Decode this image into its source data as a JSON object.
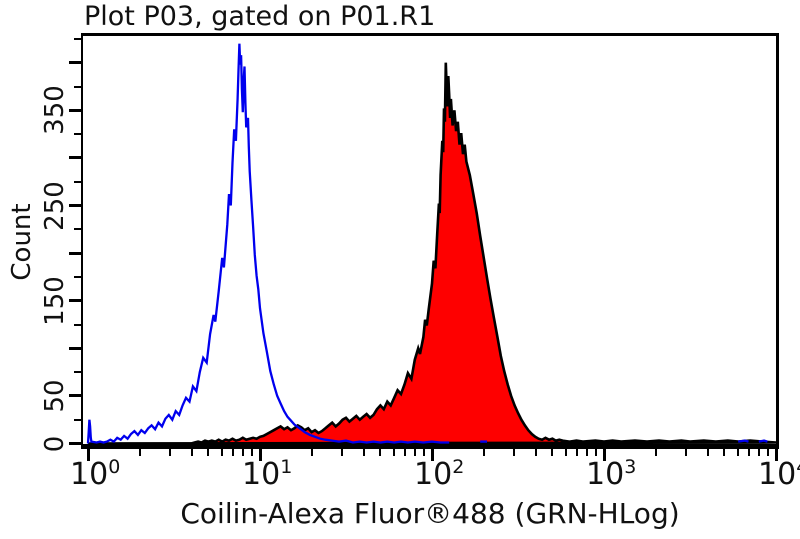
{
  "header": {
    "title": "Plot P03, gated on P01.R1"
  },
  "axes": {
    "x": {
      "title": "Coilin-Alexa Fluor®488 (GRN-HLog)",
      "scale": "log10",
      "base_label": "10",
      "decade_exponents": [
        0,
        1,
        2,
        3,
        4
      ],
      "minor_log_offsets": [
        0.301,
        0.477,
        0.602,
        0.699,
        0.778,
        0.845,
        0.903,
        0.954
      ]
    },
    "y": {
      "title": "Count",
      "min": 0,
      "max": 425,
      "minor_step": 25,
      "major_step": 50,
      "labeled_ticks": [
        0,
        50,
        150,
        250,
        350
      ]
    }
  },
  "colors": {
    "sample_fill": "#fe0000",
    "sample_outline": "#000000",
    "control_stroke": "#0000ee",
    "axis": "#000000",
    "background": "#ffffff"
  },
  "chart_data": {
    "type": "area",
    "title": "Plot P03, gated on P01.R1",
    "xlabel": "Coilin-Alexa Fluor®488 (GRN-HLog)",
    "ylabel": "Count",
    "x_scale": "log10",
    "x_range": [
      1,
      10000
    ],
    "ylim": [
      0,
      425
    ],
    "grid": false,
    "legend": "none",
    "series": [
      {
        "name": "stained-sample-filled-red",
        "fill": "#fe0000",
        "stroke": "#000000",
        "stroke_width": 2.6,
        "points_log10x_count": [
          [
            0,
            0
          ],
          [
            0.6,
            0
          ],
          [
            0.62,
            1
          ],
          [
            0.64,
            2
          ],
          [
            0.66,
            1
          ],
          [
            0.68,
            3
          ],
          [
            0.7,
            2
          ],
          [
            0.72,
            3
          ],
          [
            0.74,
            2
          ],
          [
            0.76,
            4
          ],
          [
            0.78,
            2
          ],
          [
            0.8,
            4
          ],
          [
            0.82,
            3
          ],
          [
            0.84,
            5
          ],
          [
            0.86,
            3
          ],
          [
            0.88,
            4
          ],
          [
            0.9,
            6
          ],
          [
            0.92,
            4
          ],
          [
            0.94,
            5
          ],
          [
            0.96,
            6
          ],
          [
            0.98,
            5
          ],
          [
            1.0,
            7
          ],
          [
            1.02,
            8
          ],
          [
            1.04,
            10
          ],
          [
            1.06,
            12
          ],
          [
            1.08,
            14
          ],
          [
            1.1,
            16
          ],
          [
            1.12,
            18
          ],
          [
            1.14,
            15
          ],
          [
            1.16,
            17
          ],
          [
            1.18,
            14
          ],
          [
            1.2,
            16
          ],
          [
            1.22,
            19
          ],
          [
            1.24,
            17
          ],
          [
            1.26,
            14
          ],
          [
            1.28,
            16
          ],
          [
            1.3,
            12
          ],
          [
            1.32,
            14
          ],
          [
            1.34,
            11
          ],
          [
            1.36,
            13
          ],
          [
            1.38,
            16
          ],
          [
            1.4,
            19
          ],
          [
            1.42,
            22
          ],
          [
            1.44,
            18
          ],
          [
            1.46,
            21
          ],
          [
            1.48,
            25
          ],
          [
            1.5,
            27
          ],
          [
            1.52,
            23
          ],
          [
            1.54,
            26
          ],
          [
            1.56,
            29
          ],
          [
            1.58,
            25
          ],
          [
            1.6,
            28
          ],
          [
            1.62,
            31
          ],
          [
            1.64,
            27
          ],
          [
            1.66,
            30
          ],
          [
            1.68,
            36
          ],
          [
            1.7,
            40
          ],
          [
            1.72,
            36
          ],
          [
            1.74,
            44
          ],
          [
            1.76,
            40
          ],
          [
            1.78,
            48
          ],
          [
            1.8,
            56
          ],
          [
            1.82,
            52
          ],
          [
            1.84,
            62
          ],
          [
            1.86,
            74
          ],
          [
            1.88,
            68
          ],
          [
            1.9,
            88
          ],
          [
            1.92,
            100
          ],
          [
            1.93,
            94
          ],
          [
            1.95,
            112
          ],
          [
            1.96,
            130
          ],
          [
            1.97,
            124
          ],
          [
            1.98,
            140
          ],
          [
            2.0,
            168
          ],
          [
            2.01,
            192
          ],
          [
            2.02,
            184
          ],
          [
            2.03,
            220
          ],
          [
            2.04,
            252
          ],
          [
            2.045,
            242
          ],
          [
            2.05,
            282
          ],
          [
            2.06,
            318
          ],
          [
            2.065,
            306
          ],
          [
            2.07,
            352
          ],
          [
            2.075,
            338
          ],
          [
            2.08,
            400
          ],
          [
            2.085,
            376
          ],
          [
            2.09,
            354
          ],
          [
            2.095,
            386
          ],
          [
            2.1,
            366
          ],
          [
            2.105,
            342
          ],
          [
            2.11,
            362
          ],
          [
            2.12,
            334
          ],
          [
            2.13,
            350
          ],
          [
            2.14,
            328
          ],
          [
            2.15,
            338
          ],
          [
            2.16,
            314
          ],
          [
            2.17,
            326
          ],
          [
            2.18,
            304
          ],
          [
            2.19,
            314
          ],
          [
            2.2,
            296
          ],
          [
            2.22,
            282
          ],
          [
            2.24,
            262
          ],
          [
            2.26,
            242
          ],
          [
            2.28,
            218
          ],
          [
            2.3,
            196
          ],
          [
            2.32,
            174
          ],
          [
            2.34,
            152
          ],
          [
            2.36,
            132
          ],
          [
            2.38,
            112
          ],
          [
            2.4,
            92
          ],
          [
            2.42,
            76
          ],
          [
            2.44,
            62
          ],
          [
            2.46,
            50
          ],
          [
            2.48,
            40
          ],
          [
            2.5,
            32
          ],
          [
            2.52,
            25
          ],
          [
            2.54,
            19
          ],
          [
            2.56,
            14
          ],
          [
            2.58,
            10
          ],
          [
            2.6,
            7
          ],
          [
            2.62,
            5
          ],
          [
            2.64,
            4
          ],
          [
            2.66,
            6
          ],
          [
            2.68,
            4
          ],
          [
            2.7,
            5
          ],
          [
            2.72,
            3
          ],
          [
            2.74,
            4
          ],
          [
            2.76,
            3
          ],
          [
            2.8,
            2
          ],
          [
            2.84,
            3
          ],
          [
            2.88,
            2
          ],
          [
            2.95,
            3
          ],
          [
            3.0,
            2
          ],
          [
            3.05,
            3
          ],
          [
            3.1,
            2
          ],
          [
            3.18,
            3
          ],
          [
            3.25,
            2
          ],
          [
            3.32,
            3
          ],
          [
            3.38,
            2
          ],
          [
            3.45,
            3
          ],
          [
            3.5,
            2
          ],
          [
            3.58,
            3
          ],
          [
            3.65,
            2
          ],
          [
            3.72,
            3
          ],
          [
            3.78,
            2
          ],
          [
            3.85,
            3
          ],
          [
            3.92,
            2
          ],
          [
            4.0,
            1
          ]
        ]
      },
      {
        "name": "control-open-blue",
        "fill": "none",
        "stroke": "#0000ee",
        "stroke_width": 2.3,
        "points_log10x_count": [
          [
            0,
            0
          ],
          [
            0.004,
            12
          ],
          [
            0.008,
            25
          ],
          [
            0.012,
            18
          ],
          [
            0.016,
            6
          ],
          [
            0.02,
            2
          ],
          [
            0.05,
            1
          ],
          [
            0.07,
            2
          ],
          [
            0.09,
            1
          ],
          [
            0.11,
            2
          ],
          [
            0.13,
            4
          ],
          [
            0.15,
            2
          ],
          [
            0.17,
            6
          ],
          [
            0.19,
            4
          ],
          [
            0.21,
            8
          ],
          [
            0.23,
            5
          ],
          [
            0.25,
            10
          ],
          [
            0.27,
            13
          ],
          [
            0.29,
            9
          ],
          [
            0.31,
            14
          ],
          [
            0.33,
            11
          ],
          [
            0.35,
            16
          ],
          [
            0.37,
            19
          ],
          [
            0.39,
            15
          ],
          [
            0.41,
            22
          ],
          [
            0.43,
            18
          ],
          [
            0.45,
            26
          ],
          [
            0.47,
            30
          ],
          [
            0.49,
            25
          ],
          [
            0.51,
            34
          ],
          [
            0.53,
            30
          ],
          [
            0.55,
            40
          ],
          [
            0.57,
            48
          ],
          [
            0.59,
            44
          ],
          [
            0.61,
            60
          ],
          [
            0.63,
            55
          ],
          [
            0.65,
            75
          ],
          [
            0.67,
            90
          ],
          [
            0.69,
            85
          ],
          [
            0.71,
            115
          ],
          [
            0.73,
            135
          ],
          [
            0.74,
            128
          ],
          [
            0.76,
            160
          ],
          [
            0.78,
            195
          ],
          [
            0.79,
            185
          ],
          [
            0.81,
            230
          ],
          [
            0.82,
            262
          ],
          [
            0.83,
            250
          ],
          [
            0.84,
            295
          ],
          [
            0.85,
            330
          ],
          [
            0.86,
            318
          ],
          [
            0.87,
            362
          ],
          [
            0.875,
            392
          ],
          [
            0.88,
            420
          ],
          [
            0.885,
            398
          ],
          [
            0.89,
            408
          ],
          [
            0.895,
            372
          ],
          [
            0.9,
            348
          ],
          [
            0.905,
            382
          ],
          [
            0.91,
            396
          ],
          [
            0.915,
            358
          ],
          [
            0.92,
            332
          ],
          [
            0.93,
            342
          ],
          [
            0.935,
            312
          ],
          [
            0.94,
            286
          ],
          [
            0.95,
            256
          ],
          [
            0.96,
            228
          ],
          [
            0.97,
            198
          ],
          [
            0.98,
            176
          ],
          [
            0.99,
            162
          ],
          [
            1.0,
            142
          ],
          [
            1.02,
            116
          ],
          [
            1.04,
            96
          ],
          [
            1.06,
            76
          ],
          [
            1.08,
            62
          ],
          [
            1.1,
            50
          ],
          [
            1.12,
            42
          ],
          [
            1.14,
            34
          ],
          [
            1.16,
            28
          ],
          [
            1.18,
            24
          ],
          [
            1.2,
            20
          ],
          [
            1.23,
            16
          ],
          [
            1.26,
            12
          ],
          [
            1.29,
            9
          ],
          [
            1.32,
            7
          ],
          [
            1.35,
            5
          ],
          [
            1.38,
            4
          ],
          [
            1.42,
            3
          ],
          [
            1.46,
            2
          ],
          [
            1.5,
            3
          ],
          [
            1.54,
            1
          ],
          [
            1.58,
            2
          ],
          [
            1.62,
            1
          ],
          [
            1.66,
            2
          ],
          [
            1.7,
            1
          ],
          [
            1.74,
            2
          ],
          [
            1.78,
            1
          ],
          [
            1.82,
            2
          ],
          [
            1.86,
            1
          ],
          [
            1.9,
            2
          ],
          [
            1.95,
            1
          ],
          [
            2.0,
            2
          ],
          [
            2.05,
            1
          ],
          [
            2.1,
            1
          ]
        ],
        "overlay_segments_log10x_count": [
          [
            [
              2.28,
              2
            ],
            [
              2.32,
              2
            ]
          ],
          [
            [
              3.78,
              2
            ],
            [
              3.82,
              3
            ],
            [
              3.84,
              2
            ]
          ],
          [
            [
              3.9,
              2
            ],
            [
              3.93,
              3
            ],
            [
              3.95,
              2
            ]
          ]
        ]
      }
    ]
  }
}
